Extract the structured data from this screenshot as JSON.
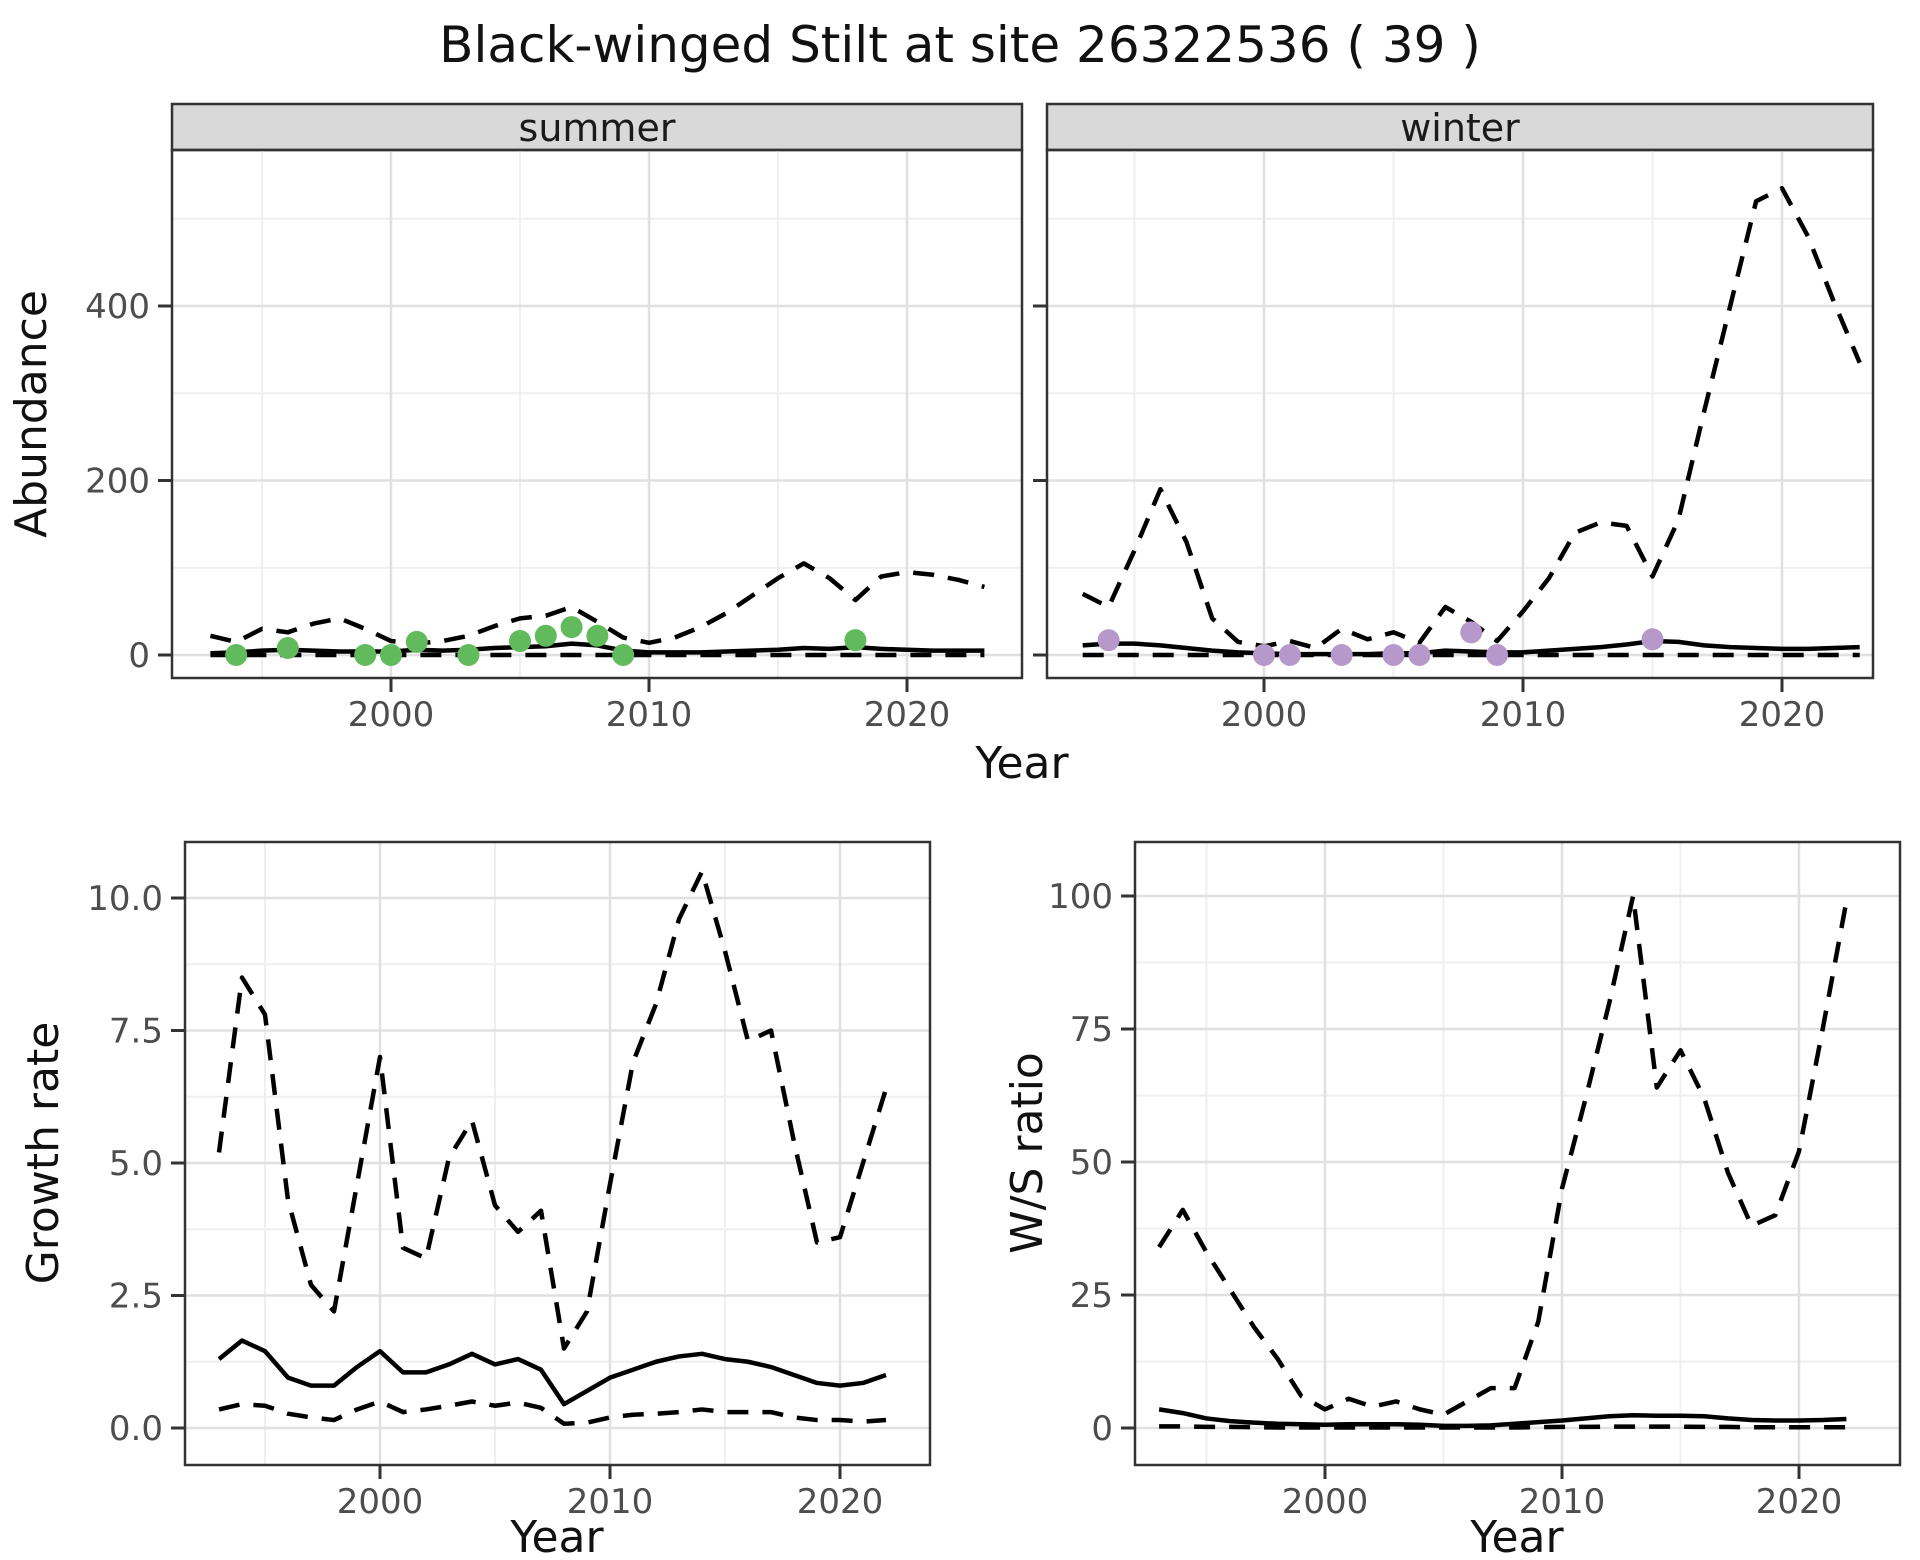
{
  "title": "Black-winged Stilt at site 26322536 ( 39 )",
  "colors": {
    "summer_points": "#61BA5C",
    "winter_points": "#B798CA",
    "line": "#000000",
    "strip_bg": "#D9D9D9",
    "panel_border": "#333333",
    "grid_major": "#E0E0E0",
    "grid_minor": "#EFEFEF",
    "tick_text": "#4D4D4D"
  },
  "top_row": {
    "ylabel": "Abundance",
    "xlabel": "Year"
  },
  "bottom_row": {
    "left_xlabel": "Year",
    "right_xlabel": "Year"
  },
  "chart_data": [
    {
      "id": "abundance-summer",
      "type": "line",
      "facet": "summer",
      "ylabel": "Abundance",
      "xlabel": "Year",
      "x": [
        1993,
        1994,
        1995,
        1996,
        1997,
        1998,
        1999,
        2000,
        2001,
        2002,
        2003,
        2004,
        2005,
        2006,
        2007,
        2008,
        2009,
        2010,
        2011,
        2012,
        2013,
        2014,
        2015,
        2016,
        2017,
        2018,
        2019,
        2020,
        2021,
        2022,
        2023
      ],
      "series": [
        {
          "name": "predicted-median",
          "style": "solid",
          "values": [
            2,
            3,
            5,
            6,
            5,
            4,
            4,
            4,
            6,
            5,
            6,
            8,
            9,
            10,
            13,
            11,
            5,
            3,
            3,
            3,
            4,
            5,
            6,
            8,
            7,
            9,
            7,
            6,
            5,
            5,
            5
          ]
        },
        {
          "name": "upper-credible-interval",
          "style": "dashed",
          "values": [
            22,
            15,
            30,
            26,
            36,
            42,
            30,
            16,
            13,
            16,
            22,
            33,
            42,
            45,
            55,
            38,
            20,
            14,
            20,
            32,
            48,
            68,
            88,
            105,
            88,
            63,
            90,
            95,
            92,
            86,
            78
          ]
        },
        {
          "name": "lower-credible-interval",
          "style": "dashed",
          "values": [
            0,
            0,
            0,
            0,
            0,
            0,
            0,
            0,
            0,
            0,
            0,
            0,
            0,
            0,
            0,
            0,
            0,
            0,
            0,
            0,
            0,
            0,
            0,
            0,
            0,
            0,
            0,
            0,
            0,
            0,
            0
          ]
        }
      ],
      "points": {
        "name": "observed-counts",
        "color": "#61BA5C",
        "data": [
          [
            1994,
            0
          ],
          [
            1996,
            8
          ],
          [
            1999,
            0
          ],
          [
            2000,
            0
          ],
          [
            2001,
            15
          ],
          [
            2003,
            0
          ],
          [
            2005,
            16
          ],
          [
            2006,
            22
          ],
          [
            2007,
            32
          ],
          [
            2008,
            22
          ],
          [
            2009,
            0
          ],
          [
            2018,
            17
          ]
        ]
      },
      "ylim": [
        -27,
        580
      ],
      "yticks": [
        {
          "v": 0,
          "l": "0"
        },
        {
          "v": 200,
          "l": "200"
        },
        {
          "v": 400,
          "l": "400"
        }
      ],
      "yminor": [
        100,
        300,
        500
      ],
      "xticks": [
        {
          "v": 2000,
          "l": "2000"
        },
        {
          "v": 2010,
          "l": "2010"
        },
        {
          "v": 2020,
          "l": "2020"
        }
      ],
      "xminor": [
        1995,
        2005,
        2015
      ],
      "show_ytick_labels": true
    },
    {
      "id": "abundance-winter",
      "type": "line",
      "facet": "winter",
      "ylabel": "Abundance",
      "xlabel": "Year",
      "x": [
        1993,
        1994,
        1995,
        1996,
        1997,
        1998,
        1999,
        2000,
        2001,
        2002,
        2003,
        2004,
        2005,
        2006,
        2007,
        2008,
        2009,
        2010,
        2011,
        2012,
        2013,
        2014,
        2015,
        2016,
        2017,
        2018,
        2019,
        2020,
        2021,
        2022,
        2023
      ],
      "series": [
        {
          "name": "predicted-median",
          "style": "solid",
          "values": [
            11,
            13,
            13,
            11,
            8,
            5,
            3,
            2,
            1,
            1,
            1,
            1,
            2,
            2,
            5,
            4,
            3,
            3,
            5,
            7,
            9,
            12,
            16,
            15,
            11,
            9,
            8,
            7,
            7,
            8,
            9
          ]
        },
        {
          "name": "upper-credible-interval",
          "style": "dashed",
          "values": [
            70,
            55,
            120,
            190,
            130,
            42,
            15,
            10,
            16,
            8,
            30,
            18,
            26,
            14,
            55,
            38,
            16,
            50,
            88,
            140,
            152,
            148,
            90,
            155,
            280,
            400,
            520,
            535,
            480,
            405,
            335
          ]
        },
        {
          "name": "lower-credible-interval",
          "style": "dashed",
          "values": [
            0,
            0,
            0,
            0,
            0,
            0,
            0,
            0,
            0,
            0,
            0,
            0,
            0,
            0,
            0,
            0,
            0,
            0,
            0,
            0,
            0,
            0,
            0,
            0,
            0,
            0,
            0,
            0,
            0,
            0,
            0
          ]
        }
      ],
      "points": {
        "name": "observed-counts",
        "color": "#B798CA",
        "data": [
          [
            1994,
            17
          ],
          [
            2000,
            0
          ],
          [
            2001,
            0
          ],
          [
            2003,
            0
          ],
          [
            2005,
            0
          ],
          [
            2006,
            0
          ],
          [
            2008,
            26
          ],
          [
            2009,
            0
          ],
          [
            2015,
            18
          ]
        ]
      },
      "ylim": [
        -27,
        580
      ],
      "yticks": [
        {
          "v": 0,
          "l": "0"
        },
        {
          "v": 200,
          "l": "200"
        },
        {
          "v": 400,
          "l": "400"
        }
      ],
      "yminor": [
        100,
        300,
        500
      ],
      "xticks": [
        {
          "v": 2000,
          "l": "2000"
        },
        {
          "v": 2010,
          "l": "2010"
        },
        {
          "v": 2020,
          "l": "2020"
        }
      ],
      "xminor": [
        1995,
        2005,
        2015
      ],
      "show_ytick_labels": false
    },
    {
      "id": "growth-rate",
      "type": "line",
      "facet": null,
      "ylabel": "Growth rate",
      "xlabel": "Year",
      "x": [
        1993,
        1994,
        1995,
        1996,
        1997,
        1998,
        1999,
        2000,
        2001,
        2002,
        2003,
        2004,
        2005,
        2006,
        2007,
        2008,
        2009,
        2010,
        2011,
        2012,
        2013,
        2014,
        2015,
        2016,
        2017,
        2018,
        2019,
        2020,
        2021,
        2022
      ],
      "series": [
        {
          "name": "predicted-median",
          "style": "solid",
          "values": [
            1.3,
            1.65,
            1.45,
            0.95,
            0.8,
            0.8,
            1.15,
            1.45,
            1.05,
            1.05,
            1.2,
            1.4,
            1.2,
            1.3,
            1.1,
            0.45,
            0.7,
            0.95,
            1.1,
            1.25,
            1.35,
            1.4,
            1.3,
            1.25,
            1.15,
            1.0,
            0.85,
            0.8,
            0.85,
            1.0
          ]
        },
        {
          "name": "upper-credible-interval",
          "style": "dashed",
          "values": [
            5.2,
            8.5,
            7.8,
            4.3,
            2.7,
            2.2,
            4.6,
            7.0,
            3.4,
            3.2,
            5.1,
            5.8,
            4.2,
            3.7,
            4.1,
            1.5,
            2.2,
            4.6,
            6.9,
            8.0,
            9.6,
            10.5,
            9.0,
            7.3,
            7.5,
            5.4,
            3.5,
            3.6,
            5.0,
            6.4
          ]
        },
        {
          "name": "lower-credible-interval",
          "style": "dashed",
          "values": [
            0.35,
            0.45,
            0.42,
            0.27,
            0.2,
            0.15,
            0.35,
            0.5,
            0.3,
            0.35,
            0.42,
            0.5,
            0.42,
            0.48,
            0.38,
            0.08,
            0.1,
            0.2,
            0.25,
            0.27,
            0.3,
            0.35,
            0.3,
            0.3,
            0.3,
            0.2,
            0.15,
            0.15,
            0.12,
            0.15
          ]
        }
      ],
      "points": null,
      "ylim": [
        -0.7,
        11.1
      ],
      "yticks": [
        {
          "v": 0,
          "l": "0.0"
        },
        {
          "v": 2.5,
          "l": "2.5"
        },
        {
          "v": 5,
          "l": "5.0"
        },
        {
          "v": 7.5,
          "l": "7.5"
        },
        {
          "v": 10,
          "l": "10.0"
        }
      ],
      "yminor": [
        1.25,
        3.75,
        6.25,
        8.75
      ],
      "xticks": [
        {
          "v": 2000,
          "l": "2000"
        },
        {
          "v": 2010,
          "l": "2010"
        },
        {
          "v": 2020,
          "l": "2020"
        }
      ],
      "xminor": [
        1995,
        2005,
        2015
      ],
      "show_ytick_labels": true
    },
    {
      "id": "ws-ratio",
      "type": "line",
      "facet": null,
      "ylabel": "W/S ratio",
      "xlabel": "Year",
      "x": [
        1993,
        1994,
        1995,
        1996,
        1997,
        1998,
        1999,
        2000,
        2001,
        2002,
        2003,
        2004,
        2005,
        2006,
        2007,
        2008,
        2009,
        2010,
        2011,
        2012,
        2013,
        2014,
        2015,
        2016,
        2017,
        2018,
        2019,
        2020,
        2021,
        2022
      ],
      "series": [
        {
          "name": "predicted-median",
          "style": "solid",
          "values": [
            3.5,
            2.8,
            1.8,
            1.3,
            1.0,
            0.8,
            0.7,
            0.6,
            0.7,
            0.7,
            0.7,
            0.6,
            0.4,
            0.4,
            0.5,
            0.8,
            1.1,
            1.4,
            1.8,
            2.2,
            2.4,
            2.3,
            2.3,
            2.2,
            1.8,
            1.5,
            1.4,
            1.4,
            1.5,
            1.7
          ]
        },
        {
          "name": "upper-credible-interval",
          "style": "dashed",
          "values": [
            34,
            41,
            33,
            26,
            19,
            13,
            6,
            3.5,
            5.5,
            4,
            5,
            3.5,
            2.5,
            5,
            7.5,
            7.5,
            20,
            45,
            62,
            80,
            100,
            64,
            71,
            62,
            48,
            38,
            40,
            52,
            75,
            99
          ]
        },
        {
          "name": "lower-credible-interval",
          "style": "dashed",
          "values": [
            0.3,
            0.3,
            0.2,
            0.2,
            0.15,
            0.1,
            0.1,
            0.1,
            0.1,
            0.1,
            0.1,
            0.1,
            0.1,
            0.1,
            0.1,
            0.1,
            0.15,
            0.2,
            0.2,
            0.25,
            0.25,
            0.25,
            0.25,
            0.2,
            0.2,
            0.15,
            0.15,
            0.15,
            0.15,
            0.15
          ]
        }
      ],
      "points": null,
      "ylim": [
        -7,
        110
      ],
      "yticks": [
        {
          "v": 0,
          "l": "0"
        },
        {
          "v": 25,
          "l": "25"
        },
        {
          "v": 50,
          "l": "50"
        },
        {
          "v": 75,
          "l": "75"
        },
        {
          "v": 100,
          "l": "100"
        }
      ],
      "yminor": [
        12.5,
        37.5,
        62.5,
        87.5
      ],
      "xticks": [
        {
          "v": 2000,
          "l": "2000"
        },
        {
          "v": 2010,
          "l": "2010"
        },
        {
          "v": 2020,
          "l": "2020"
        }
      ],
      "xminor": [
        1995,
        2005,
        2015
      ],
      "show_ytick_labels": true
    }
  ]
}
